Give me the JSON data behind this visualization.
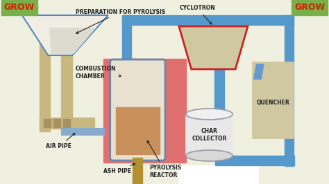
{
  "bg_color": "#f0f0e0",
  "grow_bg": "#7ab04a",
  "grow_color": "#cc2200",
  "grow_text": "GROW",
  "blue_pipe": "#5599cc",
  "tan_color": "#c8b880",
  "dark_tan": "#a89060",
  "red_chamber": "#e07070",
  "beige_box": "#d0c8a0",
  "gold_pipe": "#b09030",
  "reactor_fill": "#c8905a",
  "white_fill": "#f0ede5",
  "reactor_bg": "#e8e0d0",
  "char_fill": "#e8e8e8",
  "char_edge": "#9999aa",
  "quencher_edge": "#444444",
  "label_color": "#222222",
  "blue_diag": "#6699cc",
  "labels": {
    "preparation": "PREPARATION FOR PYROLYSIS",
    "combustion": "COMBUSTION\nCHAMBER",
    "air_pipe": "AIR PIPE",
    "ash_pipe": "ASH PIPE",
    "pyrolysis_reactor": "PYROLYSIS\nREACTOR",
    "cyclotron": "CYCLOTRON",
    "char_collector": "CHAR\nCOLLECTOR",
    "quencher": "QUENCHER"
  },
  "font_size": 5.5
}
